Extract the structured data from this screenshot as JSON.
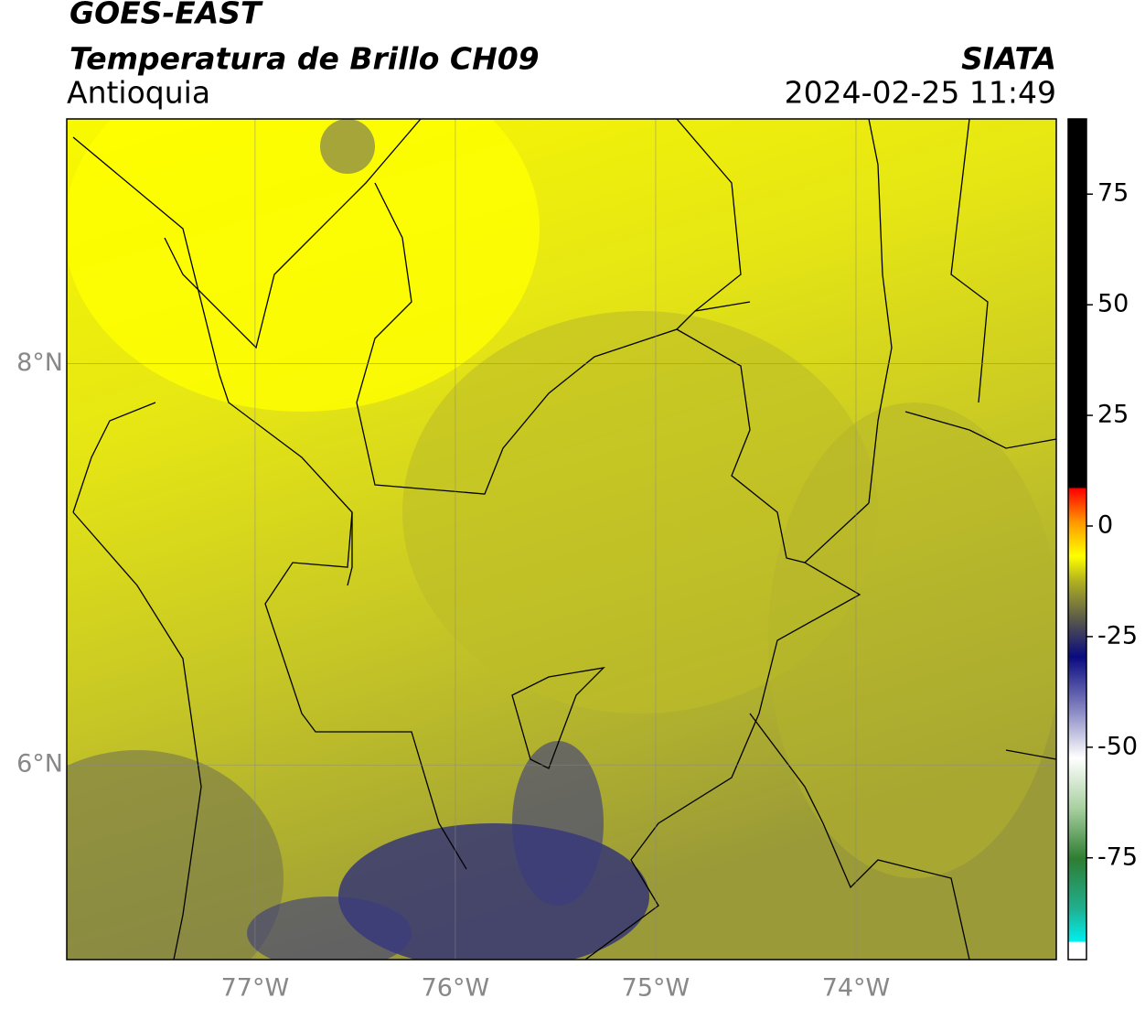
{
  "header": {
    "title": "GOES-EAST",
    "subtitle": "Temperatura de Brillo CH09",
    "region": "Antioquia",
    "source": "SIATA",
    "timestamp": "2024-02-25 11:49"
  },
  "map": {
    "xlim": [
      -77.94,
      -73.0
    ],
    "ylim": [
      5.03,
      9.22
    ],
    "xticks": [
      {
        "value": -77,
        "label": "77°W"
      },
      {
        "value": -76,
        "label": "76°W"
      },
      {
        "value": -75,
        "label": "75°W"
      },
      {
        "value": -74,
        "label": "74°W"
      }
    ],
    "yticks": [
      {
        "value": 8,
        "label": "8°N"
      },
      {
        "value": 6,
        "label": "6°N"
      }
    ]
  },
  "colorbar": {
    "lim": [
      -98,
      92
    ],
    "ticks": [
      75,
      50,
      25,
      0,
      -25,
      -50,
      -75
    ]
  }
}
